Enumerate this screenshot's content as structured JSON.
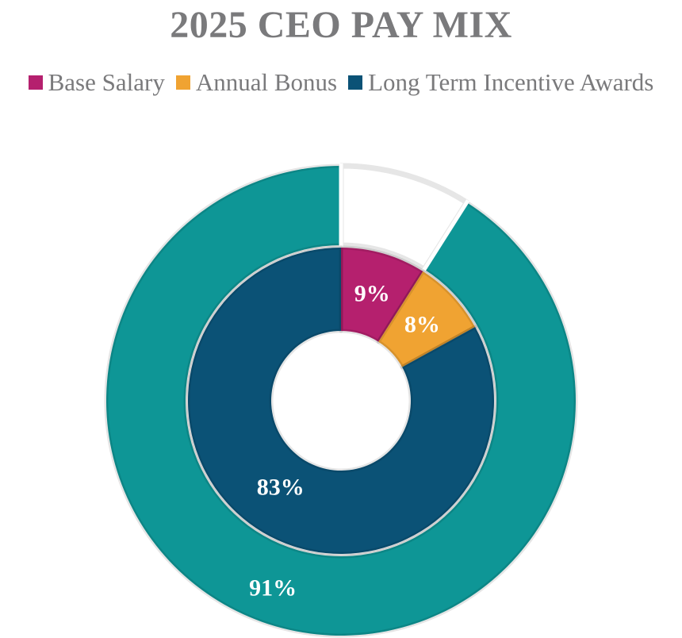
{
  "chart_data": {
    "type": "pie",
    "subtype": "nested-donut",
    "title": "2025 CEO PAY MIX",
    "legend_position": "top",
    "legend": [
      {
        "name": "Base Salary",
        "color": "#b5206e"
      },
      {
        "name": "Annual Bonus",
        "color": "#f0a332"
      },
      {
        "name": "Long Term Incentive Awards",
        "color": "#0b5276"
      }
    ],
    "outer_ring": {
      "slices": [
        {
          "value": 9,
          "color": "#ffffff",
          "label": ""
        },
        {
          "value": 91,
          "color": "#0e9696",
          "label": "91%"
        }
      ]
    },
    "inner_ring": {
      "slices": [
        {
          "name": "Base Salary",
          "value": 9,
          "color": "#b5206e",
          "label": "9%"
        },
        {
          "name": "Annual Bonus",
          "value": 8,
          "color": "#f0a332",
          "label": "8%"
        },
        {
          "name": "Long Term Incentive Awards",
          "value": 83,
          "color": "#0b5276",
          "label": "83%"
        }
      ]
    }
  }
}
